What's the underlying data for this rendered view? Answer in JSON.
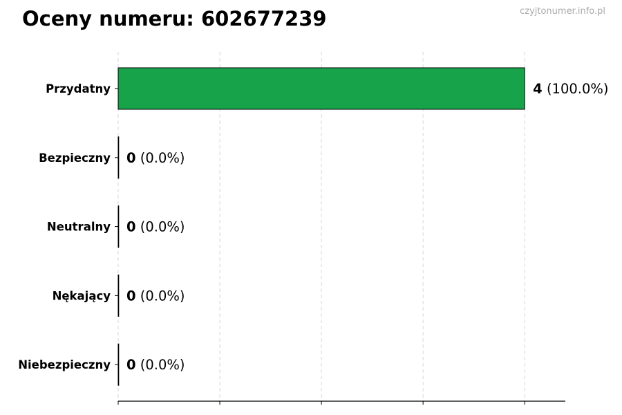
{
  "title": "Oceny numeru: 602677239",
  "watermark": "czyjtonumer.info.pl",
  "chart_data": {
    "type": "bar",
    "orientation": "horizontal",
    "title": "Oceny numeru: 602677239",
    "categories": [
      "Przydatny",
      "Bezpieczny",
      "Neutralny",
      "Nękający",
      "Niebezpieczny"
    ],
    "values": [
      4,
      0,
      0,
      0,
      0
    ],
    "data_labels": [
      {
        "count": "4",
        "percent": "(100.0%)"
      },
      {
        "count": "0",
        "percent": "(0.0%)"
      },
      {
        "count": "0",
        "percent": "(0.0%)"
      },
      {
        "count": "0",
        "percent": "(0.0%)"
      },
      {
        "count": "0",
        "percent": "(0.0%)"
      }
    ],
    "xlim": [
      0,
      4.4
    ],
    "xticks": [
      0,
      1,
      2,
      3,
      4
    ],
    "xtick_labels_shown": false,
    "grid": "vertical dashed",
    "bar_color": "#16a34a",
    "bar_edge_color": "#000000"
  }
}
